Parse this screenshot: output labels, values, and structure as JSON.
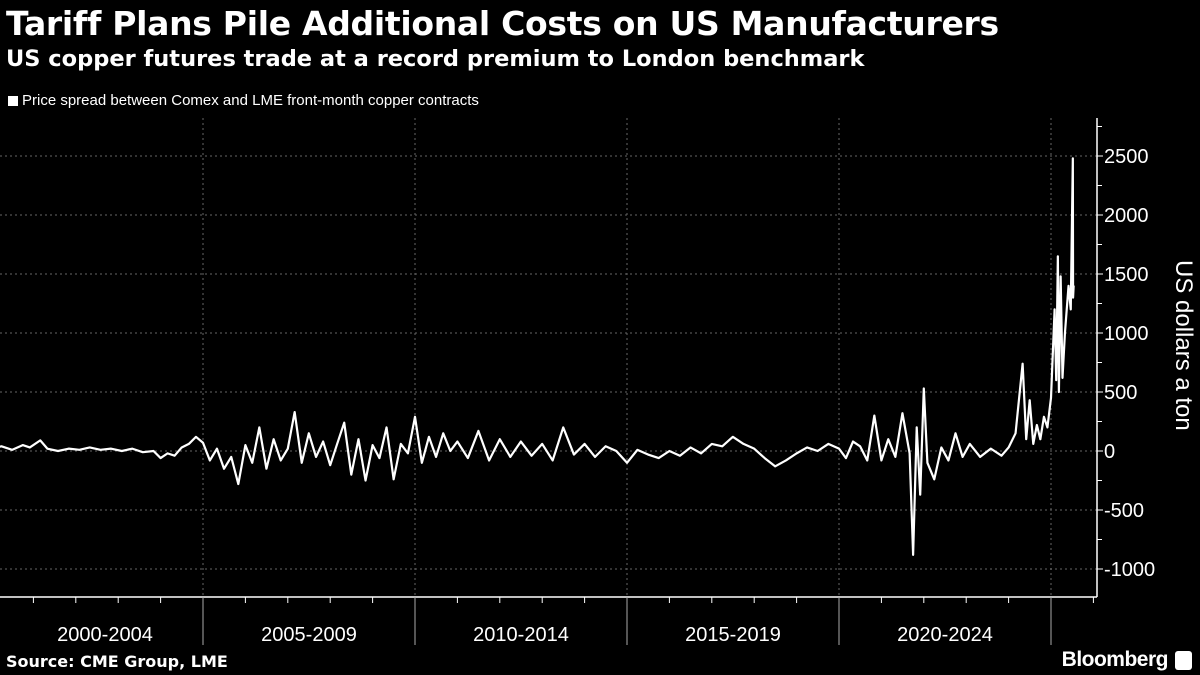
{
  "header": {
    "title": "Tariff Plans Pile Additional Costs on US Manufacturers",
    "subtitle": "US copper futures trade at a record premium to London benchmark"
  },
  "footer": {
    "source": "Source: CME Group, LME",
    "logo_text": "Bloomberg"
  },
  "chart_data": {
    "type": "line",
    "title": "",
    "xlabel": "",
    "ylabel": "US dollars a ton",
    "legend_position": "top-left",
    "grid": true,
    "colors": {
      "background": "#000000",
      "line": "#ffffff",
      "grid": "#666666"
    },
    "xlim": [
      "2000-01-01",
      "2025-09-01"
    ],
    "ylim": [
      -1100,
      2800
    ],
    "y_ticks": [
      -1000,
      -500,
      0,
      500,
      1000,
      1500,
      2000,
      2500
    ],
    "x_tick_labels": [
      "2000-2004",
      "2005-2009",
      "2010-2014",
      "2015-2019",
      "2020-2024"
    ],
    "series": [
      {
        "name": "Price spread between Comex and LME front-month copper contracts",
        "points": [
          [
            "2000-01-01",
            20
          ],
          [
            "2000-04-01",
            40
          ],
          [
            "2000-07-01",
            10
          ],
          [
            "2000-10-01",
            50
          ],
          [
            "2000-12-01",
            30
          ],
          [
            "2001-03-01",
            90
          ],
          [
            "2001-05-01",
            20
          ],
          [
            "2001-08-01",
            0
          ],
          [
            "2001-11-01",
            20
          ],
          [
            "2002-02-01",
            10
          ],
          [
            "2002-05-01",
            30
          ],
          [
            "2002-08-01",
            10
          ],
          [
            "2002-11-01",
            20
          ],
          [
            "2003-02-01",
            0
          ],
          [
            "2003-05-01",
            20
          ],
          [
            "2003-08-01",
            -10
          ],
          [
            "2003-11-01",
            0
          ],
          [
            "2004-01-01",
            -60
          ],
          [
            "2004-03-01",
            -20
          ],
          [
            "2004-05-01",
            -40
          ],
          [
            "2004-07-01",
            30
          ],
          [
            "2004-09-01",
            60
          ],
          [
            "2004-11-01",
            120
          ],
          [
            "2005-01-01",
            70
          ],
          [
            "2005-03-01",
            -80
          ],
          [
            "2005-05-01",
            20
          ],
          [
            "2005-07-01",
            -150
          ],
          [
            "2005-09-01",
            -50
          ],
          [
            "2005-11-01",
            -280
          ],
          [
            "2006-01-01",
            50
          ],
          [
            "2006-03-01",
            -100
          ],
          [
            "2006-05-01",
            200
          ],
          [
            "2006-07-01",
            -150
          ],
          [
            "2006-09-01",
            100
          ],
          [
            "2006-11-01",
            -80
          ],
          [
            "2007-01-01",
            20
          ],
          [
            "2007-03-01",
            330
          ],
          [
            "2007-05-01",
            -100
          ],
          [
            "2007-07-01",
            150
          ],
          [
            "2007-09-01",
            -50
          ],
          [
            "2007-11-01",
            80
          ],
          [
            "2008-01-01",
            -120
          ],
          [
            "2008-03-01",
            60
          ],
          [
            "2008-05-01",
            240
          ],
          [
            "2008-07-01",
            -200
          ],
          [
            "2008-09-01",
            100
          ],
          [
            "2008-11-01",
            -250
          ],
          [
            "2009-01-01",
            50
          ],
          [
            "2009-03-01",
            -60
          ],
          [
            "2009-05-01",
            200
          ],
          [
            "2009-07-01",
            -240
          ],
          [
            "2009-09-01",
            60
          ],
          [
            "2009-11-01",
            -20
          ],
          [
            "2010-01-01",
            290
          ],
          [
            "2010-03-01",
            -100
          ],
          [
            "2010-05-01",
            120
          ],
          [
            "2010-07-01",
            -50
          ],
          [
            "2010-09-01",
            150
          ],
          [
            "2010-11-01",
            0
          ],
          [
            "2011-01-01",
            80
          ],
          [
            "2011-04-01",
            -60
          ],
          [
            "2011-07-01",
            170
          ],
          [
            "2011-10-01",
            -80
          ],
          [
            "2012-01-01",
            100
          ],
          [
            "2012-04-01",
            -50
          ],
          [
            "2012-07-01",
            80
          ],
          [
            "2012-10-01",
            -40
          ],
          [
            "2013-01-01",
            60
          ],
          [
            "2013-04-01",
            -80
          ],
          [
            "2013-07-01",
            200
          ],
          [
            "2013-10-01",
            -30
          ],
          [
            "2014-01-01",
            60
          ],
          [
            "2014-04-01",
            -50
          ],
          [
            "2014-07-01",
            40
          ],
          [
            "2014-10-01",
            0
          ],
          [
            "2015-01-01",
            -100
          ],
          [
            "2015-04-01",
            10
          ],
          [
            "2015-07-01",
            -30
          ],
          [
            "2015-10-01",
            -60
          ],
          [
            "2016-01-01",
            0
          ],
          [
            "2016-04-01",
            -40
          ],
          [
            "2016-07-01",
            30
          ],
          [
            "2016-10-01",
            -20
          ],
          [
            "2017-01-01",
            60
          ],
          [
            "2017-04-01",
            40
          ],
          [
            "2017-07-01",
            120
          ],
          [
            "2017-10-01",
            60
          ],
          [
            "2018-01-01",
            20
          ],
          [
            "2018-04-01",
            -60
          ],
          [
            "2018-07-01",
            -130
          ],
          [
            "2018-10-01",
            -80
          ],
          [
            "2019-01-01",
            -20
          ],
          [
            "2019-04-01",
            30
          ],
          [
            "2019-07-01",
            0
          ],
          [
            "2019-10-01",
            60
          ],
          [
            "2020-01-01",
            20
          ],
          [
            "2020-03-01",
            -60
          ],
          [
            "2020-05-01",
            80
          ],
          [
            "2020-07-01",
            40
          ],
          [
            "2020-09-01",
            -80
          ],
          [
            "2020-11-01",
            300
          ],
          [
            "2021-01-01",
            -80
          ],
          [
            "2021-03-01",
            100
          ],
          [
            "2021-05-01",
            -50
          ],
          [
            "2021-07-01",
            320
          ],
          [
            "2021-09-01",
            -20
          ],
          [
            "2021-10-01",
            -880
          ],
          [
            "2021-11-01",
            200
          ],
          [
            "2021-12-01",
            -370
          ],
          [
            "2022-01-01",
            530
          ],
          [
            "2022-02-01",
            -100
          ],
          [
            "2022-04-01",
            -240
          ],
          [
            "2022-06-01",
            30
          ],
          [
            "2022-08-01",
            -80
          ],
          [
            "2022-10-01",
            150
          ],
          [
            "2022-12-01",
            -50
          ],
          [
            "2023-02-01",
            60
          ],
          [
            "2023-05-01",
            -50
          ],
          [
            "2023-08-01",
            20
          ],
          [
            "2023-11-01",
            -40
          ],
          [
            "2024-01-01",
            30
          ],
          [
            "2024-03-01",
            150
          ],
          [
            "2024-05-01",
            740
          ],
          [
            "2024-06-01",
            100
          ],
          [
            "2024-07-01",
            430
          ],
          [
            "2024-08-01",
            60
          ],
          [
            "2024-09-01",
            220
          ],
          [
            "2024-10-01",
            100
          ],
          [
            "2024-11-01",
            290
          ],
          [
            "2024-12-01",
            200
          ],
          [
            "2025-01-01",
            450
          ],
          [
            "2025-02-01",
            1200
          ],
          [
            "2025-02-15",
            600
          ],
          [
            "2025-03-01",
            1650
          ],
          [
            "2025-03-10",
            500
          ],
          [
            "2025-03-25",
            1480
          ],
          [
            "2025-04-10",
            620
          ],
          [
            "2025-05-01",
            1000
          ],
          [
            "2025-06-01",
            1400
          ],
          [
            "2025-06-20",
            1200
          ],
          [
            "2025-07-08",
            2480
          ],
          [
            "2025-07-10",
            1300
          ],
          [
            "2025-07-15",
            1400
          ]
        ]
      }
    ]
  }
}
